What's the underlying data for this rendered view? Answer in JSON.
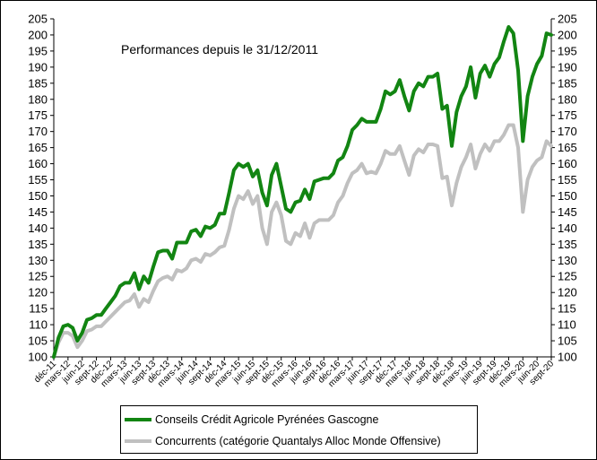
{
  "chart_data": {
    "type": "line",
    "title": "Performances depuis le 31/12/2011",
    "xlabel": "",
    "ylabel": "",
    "ylim": [
      100,
      205
    ],
    "y_ticks": [
      100,
      105,
      110,
      115,
      120,
      125,
      130,
      135,
      140,
      145,
      150,
      155,
      160,
      165,
      170,
      175,
      180,
      185,
      190,
      195,
      200,
      205
    ],
    "grid": false,
    "legend_position": "bottom",
    "x_tick_labels": [
      "déc-11",
      "mars-12",
      "juin-12",
      "sept-12",
      "déc-12",
      "mars-13",
      "juin-13",
      "sept-13",
      "déc-13",
      "mars-14",
      "juin-14",
      "sept-14",
      "déc-14",
      "mars-15",
      "juin-15",
      "sept-15",
      "déc-15",
      "mars-16",
      "juin-16",
      "sept-16",
      "déc-16",
      "mars-17",
      "juin-17",
      "sept-17",
      "déc-17",
      "mars-18",
      "juin-18",
      "sept-18",
      "déc-18",
      "mars-19",
      "juin-19",
      "sept-19",
      "déc-19",
      "mars-20",
      "juin-20",
      "sept-20"
    ],
    "series": [
      {
        "name": "Conseils Crédit Agricole Pyrénées Gascogne",
        "color": "#128512",
        "values": [
          100,
          106,
          109.5,
          110,
          109,
          105,
          107.5,
          111.5,
          112,
          113,
          113,
          115,
          117,
          119,
          122,
          123,
          123,
          126,
          121,
          125,
          123,
          128,
          132.5,
          133,
          133,
          130.5,
          135.5,
          135.5,
          135.5,
          139,
          139.5,
          137.5,
          140.5,
          140,
          141,
          144.5,
          144.5,
          151,
          158,
          160,
          159,
          160,
          156,
          158,
          151,
          147,
          156.5,
          160,
          153,
          146,
          145,
          148,
          148.5,
          152,
          149,
          154.5,
          155,
          155.5,
          155.5,
          157,
          161,
          162,
          165.5,
          170.5,
          172,
          174,
          173,
          173,
          173,
          177,
          182.5,
          181.5,
          182.5,
          186,
          181,
          176.5,
          182.5,
          185,
          184,
          187,
          187,
          188,
          177,
          178,
          165.5,
          176,
          181,
          184,
          190,
          180.5,
          188,
          190.5,
          187,
          191,
          193,
          198,
          202.5,
          200.5,
          189,
          167,
          181,
          187,
          191,
          193.5,
          200.5,
          200
        ]
      },
      {
        "name": "Concurrents (catégorie Quantalys Alloc Monde Offensive)",
        "color": "#c0c0c0",
        "values": [
          100,
          104.5,
          107.5,
          107.5,
          106.5,
          103,
          105,
          108,
          108.5,
          109.5,
          109.5,
          111,
          112.5,
          114,
          115.5,
          117,
          117.5,
          119.5,
          115.5,
          118,
          117,
          120.5,
          123.5,
          124.5,
          125,
          124,
          127,
          126.5,
          127.5,
          130,
          130.5,
          129.5,
          132,
          131.5,
          132.5,
          134,
          134.5,
          139.5,
          146,
          150,
          149,
          151.5,
          147.5,
          150,
          140,
          135,
          145,
          148,
          144,
          136,
          135,
          138.5,
          137.5,
          141.5,
          137,
          141.5,
          142.5,
          142.5,
          142.5,
          144,
          148,
          150,
          154,
          157,
          158,
          160,
          157,
          157.5,
          157,
          160,
          164,
          163,
          163,
          165.5,
          161,
          156.5,
          162.5,
          164.5,
          163.5,
          166,
          166,
          165.5,
          155.5,
          156,
          147,
          154,
          159,
          162,
          166,
          158.5,
          163,
          166,
          164,
          167,
          167,
          169,
          172,
          172,
          165,
          145,
          155,
          159,
          161,
          162,
          167,
          165.5
        ]
      }
    ]
  }
}
